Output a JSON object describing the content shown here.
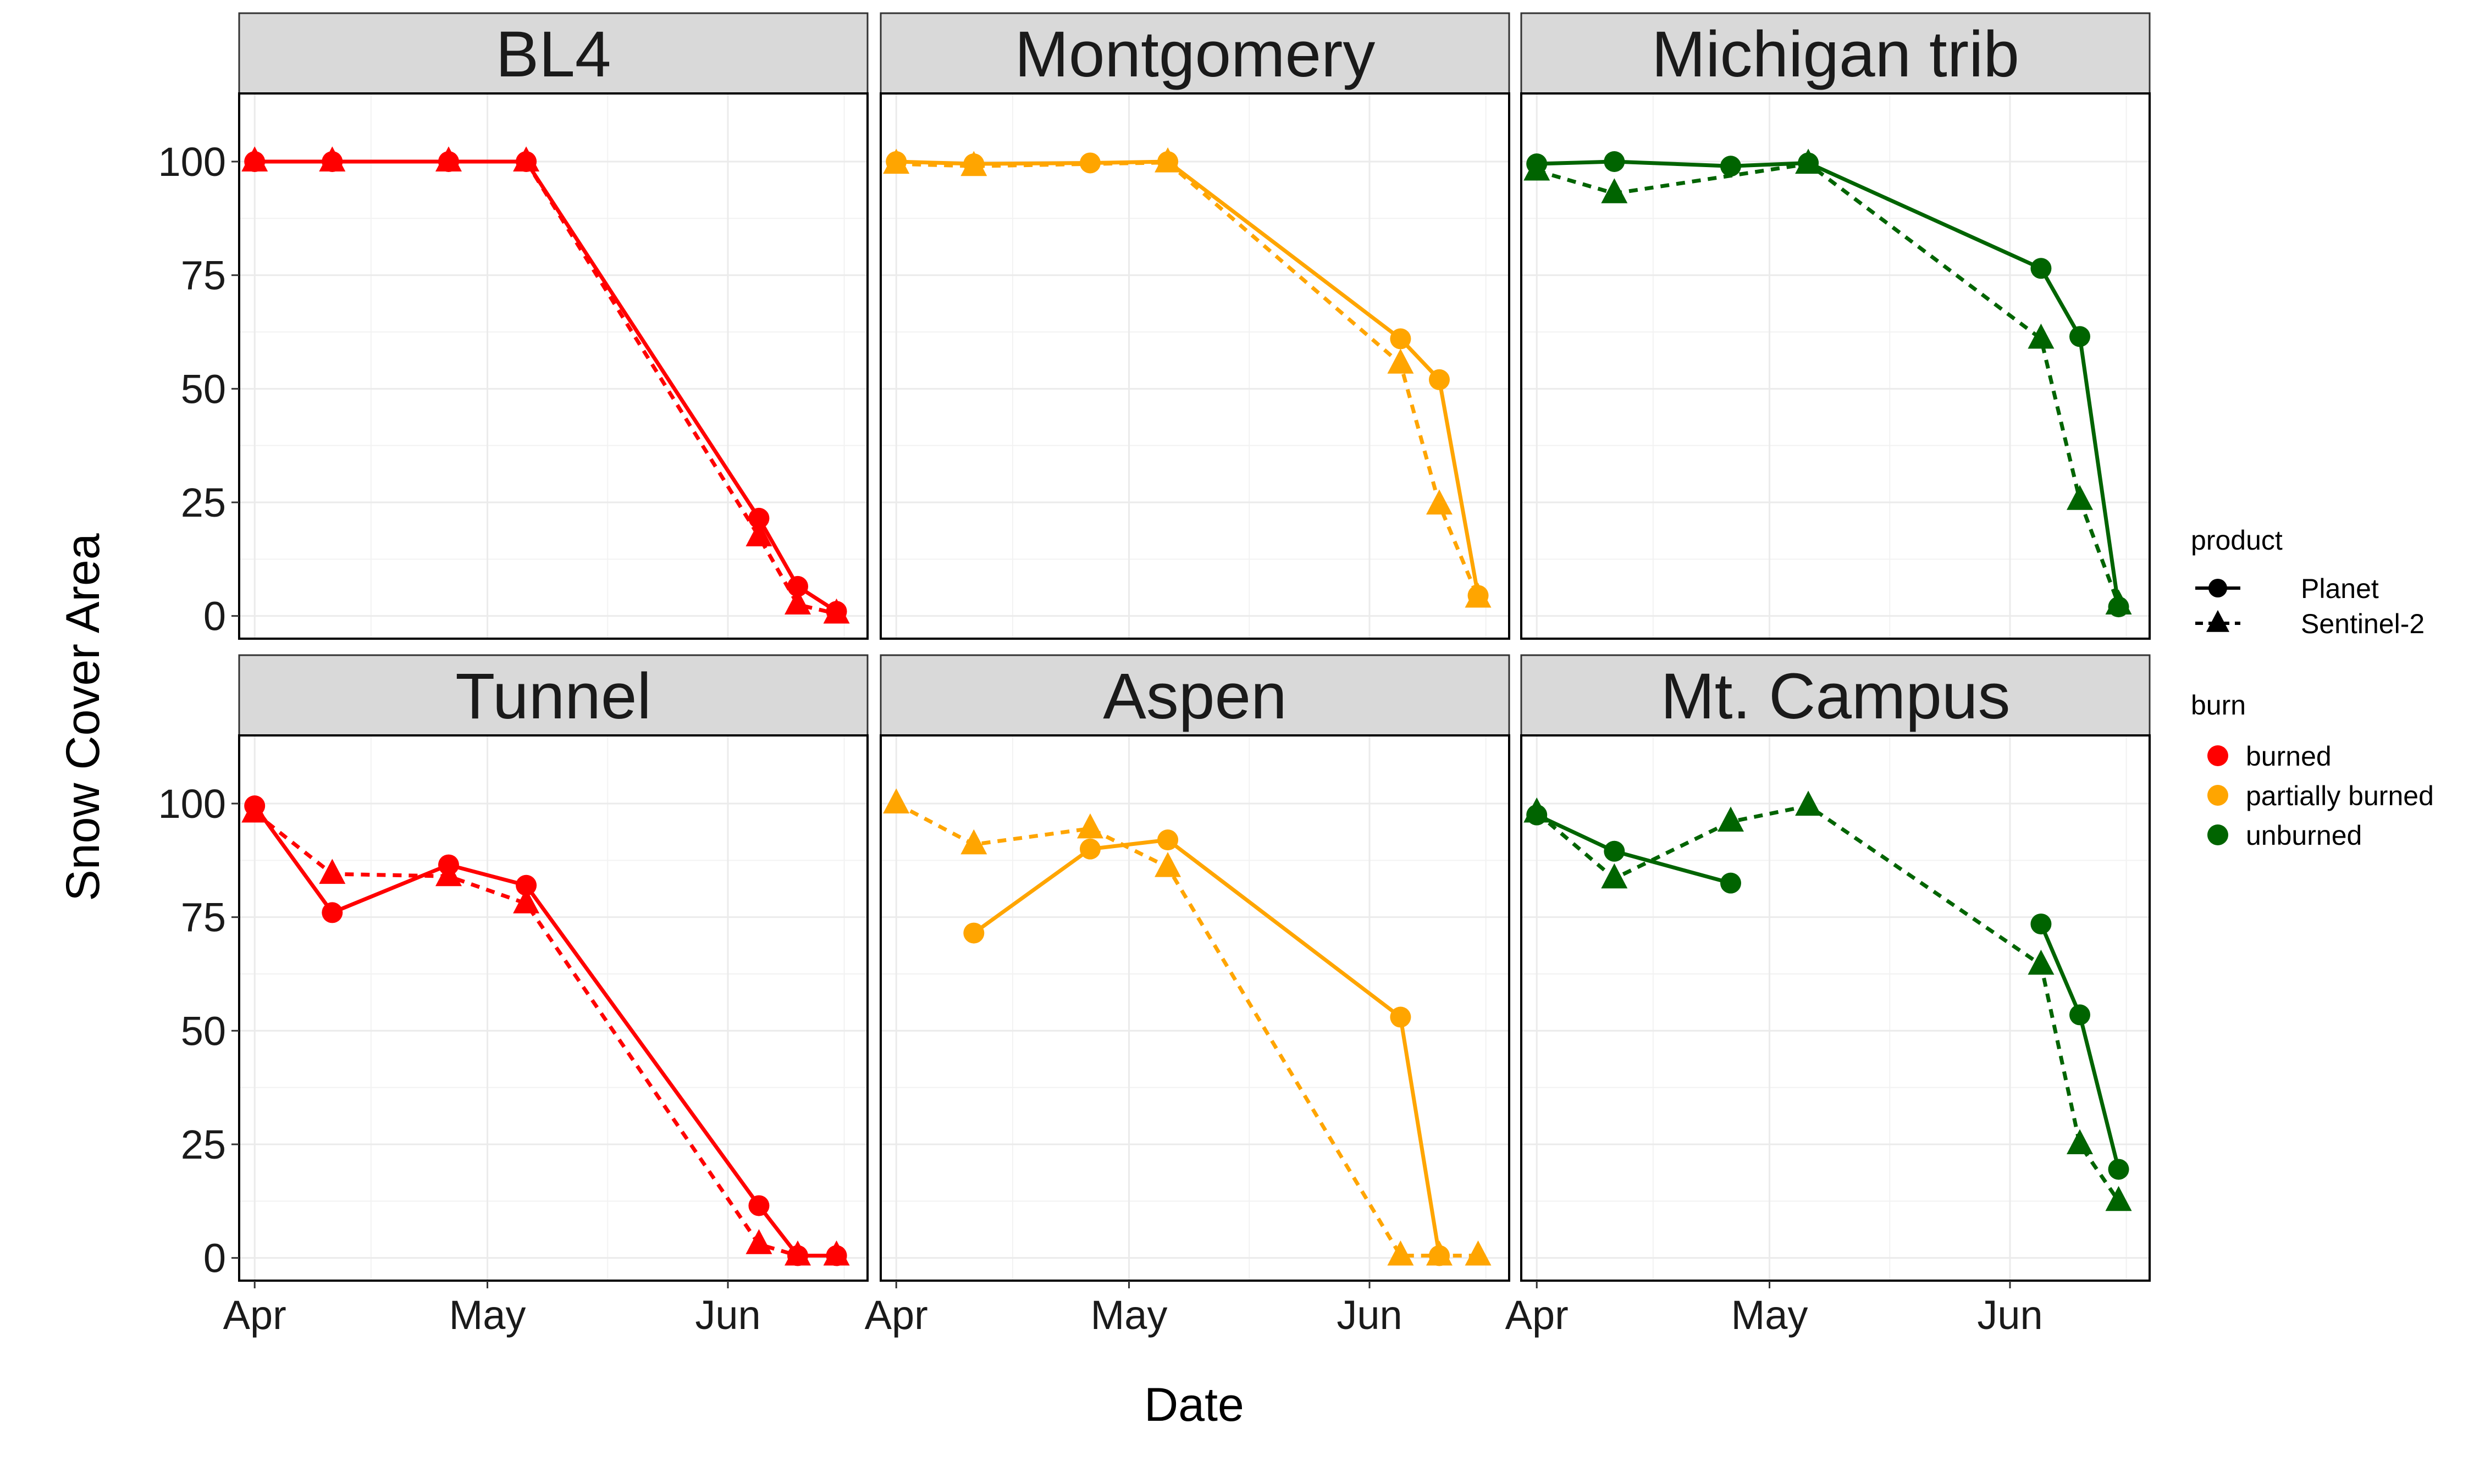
{
  "chart_data": {
    "type": "line",
    "xlabel": "Date",
    "ylabel": "Snow Cover Area",
    "ylim": [
      -5,
      115
    ],
    "yticks": [
      0,
      25,
      50,
      75,
      100
    ],
    "xlim": [
      -2,
      79
    ],
    "x_ticks": [
      {
        "date": "Apr 1",
        "label": "Apr",
        "offset": 0
      },
      {
        "date": "May 1",
        "label": "May",
        "offset": 30
      },
      {
        "date": "Jun 1",
        "label": "Jun",
        "offset": 61
      }
    ],
    "grid": true,
    "facet_layout": {
      "rows": 2,
      "cols": 3
    },
    "legends": {
      "product": {
        "title": "product",
        "entries": [
          {
            "label": "Planet",
            "shape": "circle",
            "line": "solid"
          },
          {
            "label": "Sentinel-2",
            "shape": "triangle",
            "line": "dashed"
          }
        ]
      },
      "burn": {
        "title": "burn",
        "entries": [
          {
            "label": "burned",
            "color": "#ff0000"
          },
          {
            "label": "partially burned",
            "color": "#ffa500"
          },
          {
            "label": "unburned",
            "color": "#006400"
          }
        ]
      }
    },
    "panels": [
      {
        "title": "BL4",
        "burn": "burned",
        "color": "#ff0000",
        "series": [
          {
            "name": "Planet",
            "x": [
              "Apr 1",
              "Apr 11",
              "Apr 26",
              "May 6",
              "Jun 5",
              "Jun 10",
              "Jun 15"
            ],
            "offsets": [
              0,
              10,
              25,
              35,
              65,
              70,
              75
            ],
            "values": [
              100,
              100,
              100,
              100,
              21.5,
              6.5,
              1
            ]
          },
          {
            "name": "Sentinel-2",
            "x": [
              "Apr 1",
              "Apr 11",
              "Apr 26",
              "May 6",
              "Jun 5",
              "Jun 10",
              "Jun 15"
            ],
            "offsets": [
              0,
              10,
              25,
              35,
              65,
              70,
              75
            ],
            "values": [
              100,
              100,
              100,
              100,
              17.5,
              2.5,
              0.5
            ]
          }
        ]
      },
      {
        "title": "Montgomery",
        "burn": "partially burned",
        "color": "#ffa500",
        "series": [
          {
            "name": "Planet",
            "x": [
              "Apr 1",
              "Apr 11",
              "Apr 26",
              "May 6",
              "Jun 5",
              "Jun 10",
              "Jun 15"
            ],
            "offsets": [
              0,
              10,
              25,
              35,
              65,
              70,
              75
            ],
            "values": [
              100,
              99.5,
              99.7,
              100,
              61,
              52,
              4.5
            ]
          },
          {
            "name": "Sentinel-2",
            "x": [
              "Apr 1",
              "Apr 11",
              "May 6",
              "Jun 5",
              "Jun 10",
              "Jun 15"
            ],
            "offsets": [
              0,
              10,
              35,
              65,
              70,
              75
            ],
            "values": [
              99.5,
              99,
              99.8,
              55.5,
              24.5,
              4
            ]
          }
        ]
      },
      {
        "title": "Michigan trib",
        "burn": "unburned",
        "color": "#006400",
        "series": [
          {
            "name": "Planet",
            "x": [
              "Apr 1",
              "Apr 11",
              "Apr 26",
              "May 6",
              "Jun 5",
              "Jun 10",
              "Jun 15"
            ],
            "offsets": [
              0,
              10,
              25,
              35,
              65,
              70,
              75
            ],
            "values": [
              99.5,
              100,
              99,
              99.7,
              76.5,
              61.5,
              2
            ]
          },
          {
            "name": "Sentinel-2",
            "x": [
              "Apr 1",
              "Apr 11",
              "May 6",
              "Jun 5",
              "Jun 10",
              "Jun 15"
            ],
            "offsets": [
              0,
              10,
              35,
              65,
              70,
              75
            ],
            "values": [
              98,
              93,
              99.5,
              61,
              25.5,
              2.5
            ]
          }
        ]
      },
      {
        "title": "Tunnel",
        "burn": "burned",
        "color": "#ff0000",
        "series": [
          {
            "name": "Planet",
            "x": [
              "Apr 1",
              "Apr 11",
              "Apr 26",
              "May 6",
              "Jun 5",
              "Jun 10",
              "Jun 15"
            ],
            "offsets": [
              0,
              10,
              25,
              35,
              65,
              70,
              75
            ],
            "values": [
              99.5,
              76,
              86.5,
              82,
              11.5,
              0.5,
              0.5
            ]
          },
          {
            "name": "Sentinel-2",
            "x": [
              "Apr 1",
              "Apr 11",
              "Apr 26",
              "May 6",
              "Jun 5",
              "Jun 10",
              "Jun 15"
            ],
            "offsets": [
              0,
              10,
              25,
              35,
              65,
              70,
              75
            ],
            "values": [
              98,
              84.5,
              84,
              78,
              3,
              0.5,
              0.5
            ]
          }
        ]
      },
      {
        "title": "Aspen",
        "burn": "partially burned",
        "color": "#ffa500",
        "series": [
          {
            "name": "Planet",
            "x": [
              "Apr 11",
              "Apr 26",
              "May 6",
              "Jun 5",
              "Jun 10"
            ],
            "offsets": [
              10,
              25,
              35,
              65,
              70
            ],
            "values": [
              71.5,
              90,
              92,
              53,
              0.5
            ]
          },
          {
            "name": "Sentinel-2",
            "x": [
              "Apr 1",
              "Apr 11",
              "Apr 26",
              "May 6",
              "Jun 5",
              "Jun 10",
              "Jun 15"
            ],
            "offsets": [
              0,
              10,
              25,
              35,
              65,
              70,
              75
            ],
            "values": [
              100,
              91,
              94.5,
              86,
              0.5,
              0.5,
              0.5
            ]
          }
        ]
      },
      {
        "title": "Mt. Campus",
        "burn": "unburned",
        "color": "#006400",
        "series": [
          {
            "name": "Planet",
            "x": [
              "Apr 1",
              "Apr 11",
              "Apr 26"
            ],
            "offsets": [
              0,
              10,
              25
            ],
            "values": [
              97.5,
              89.5,
              82.5
            ],
            "segment2": {
              "x": [
                "Jun 5",
                "Jun 10",
                "Jun 15"
              ],
              "offsets": [
                65,
                70,
                75
              ],
              "values": [
                73.5,
                53.5,
                19.5
              ]
            }
          },
          {
            "name": "Sentinel-2",
            "x": [
              "Apr 1",
              "Apr 11",
              "Apr 26",
              "May 6",
              "Jun 5",
              "Jun 10",
              "Jun 15"
            ],
            "offsets": [
              0,
              10,
              25,
              35,
              65,
              70,
              75
            ],
            "values": [
              98,
              83.5,
              96,
              99.5,
              64.5,
              25,
              12.5
            ]
          }
        ]
      }
    ]
  }
}
